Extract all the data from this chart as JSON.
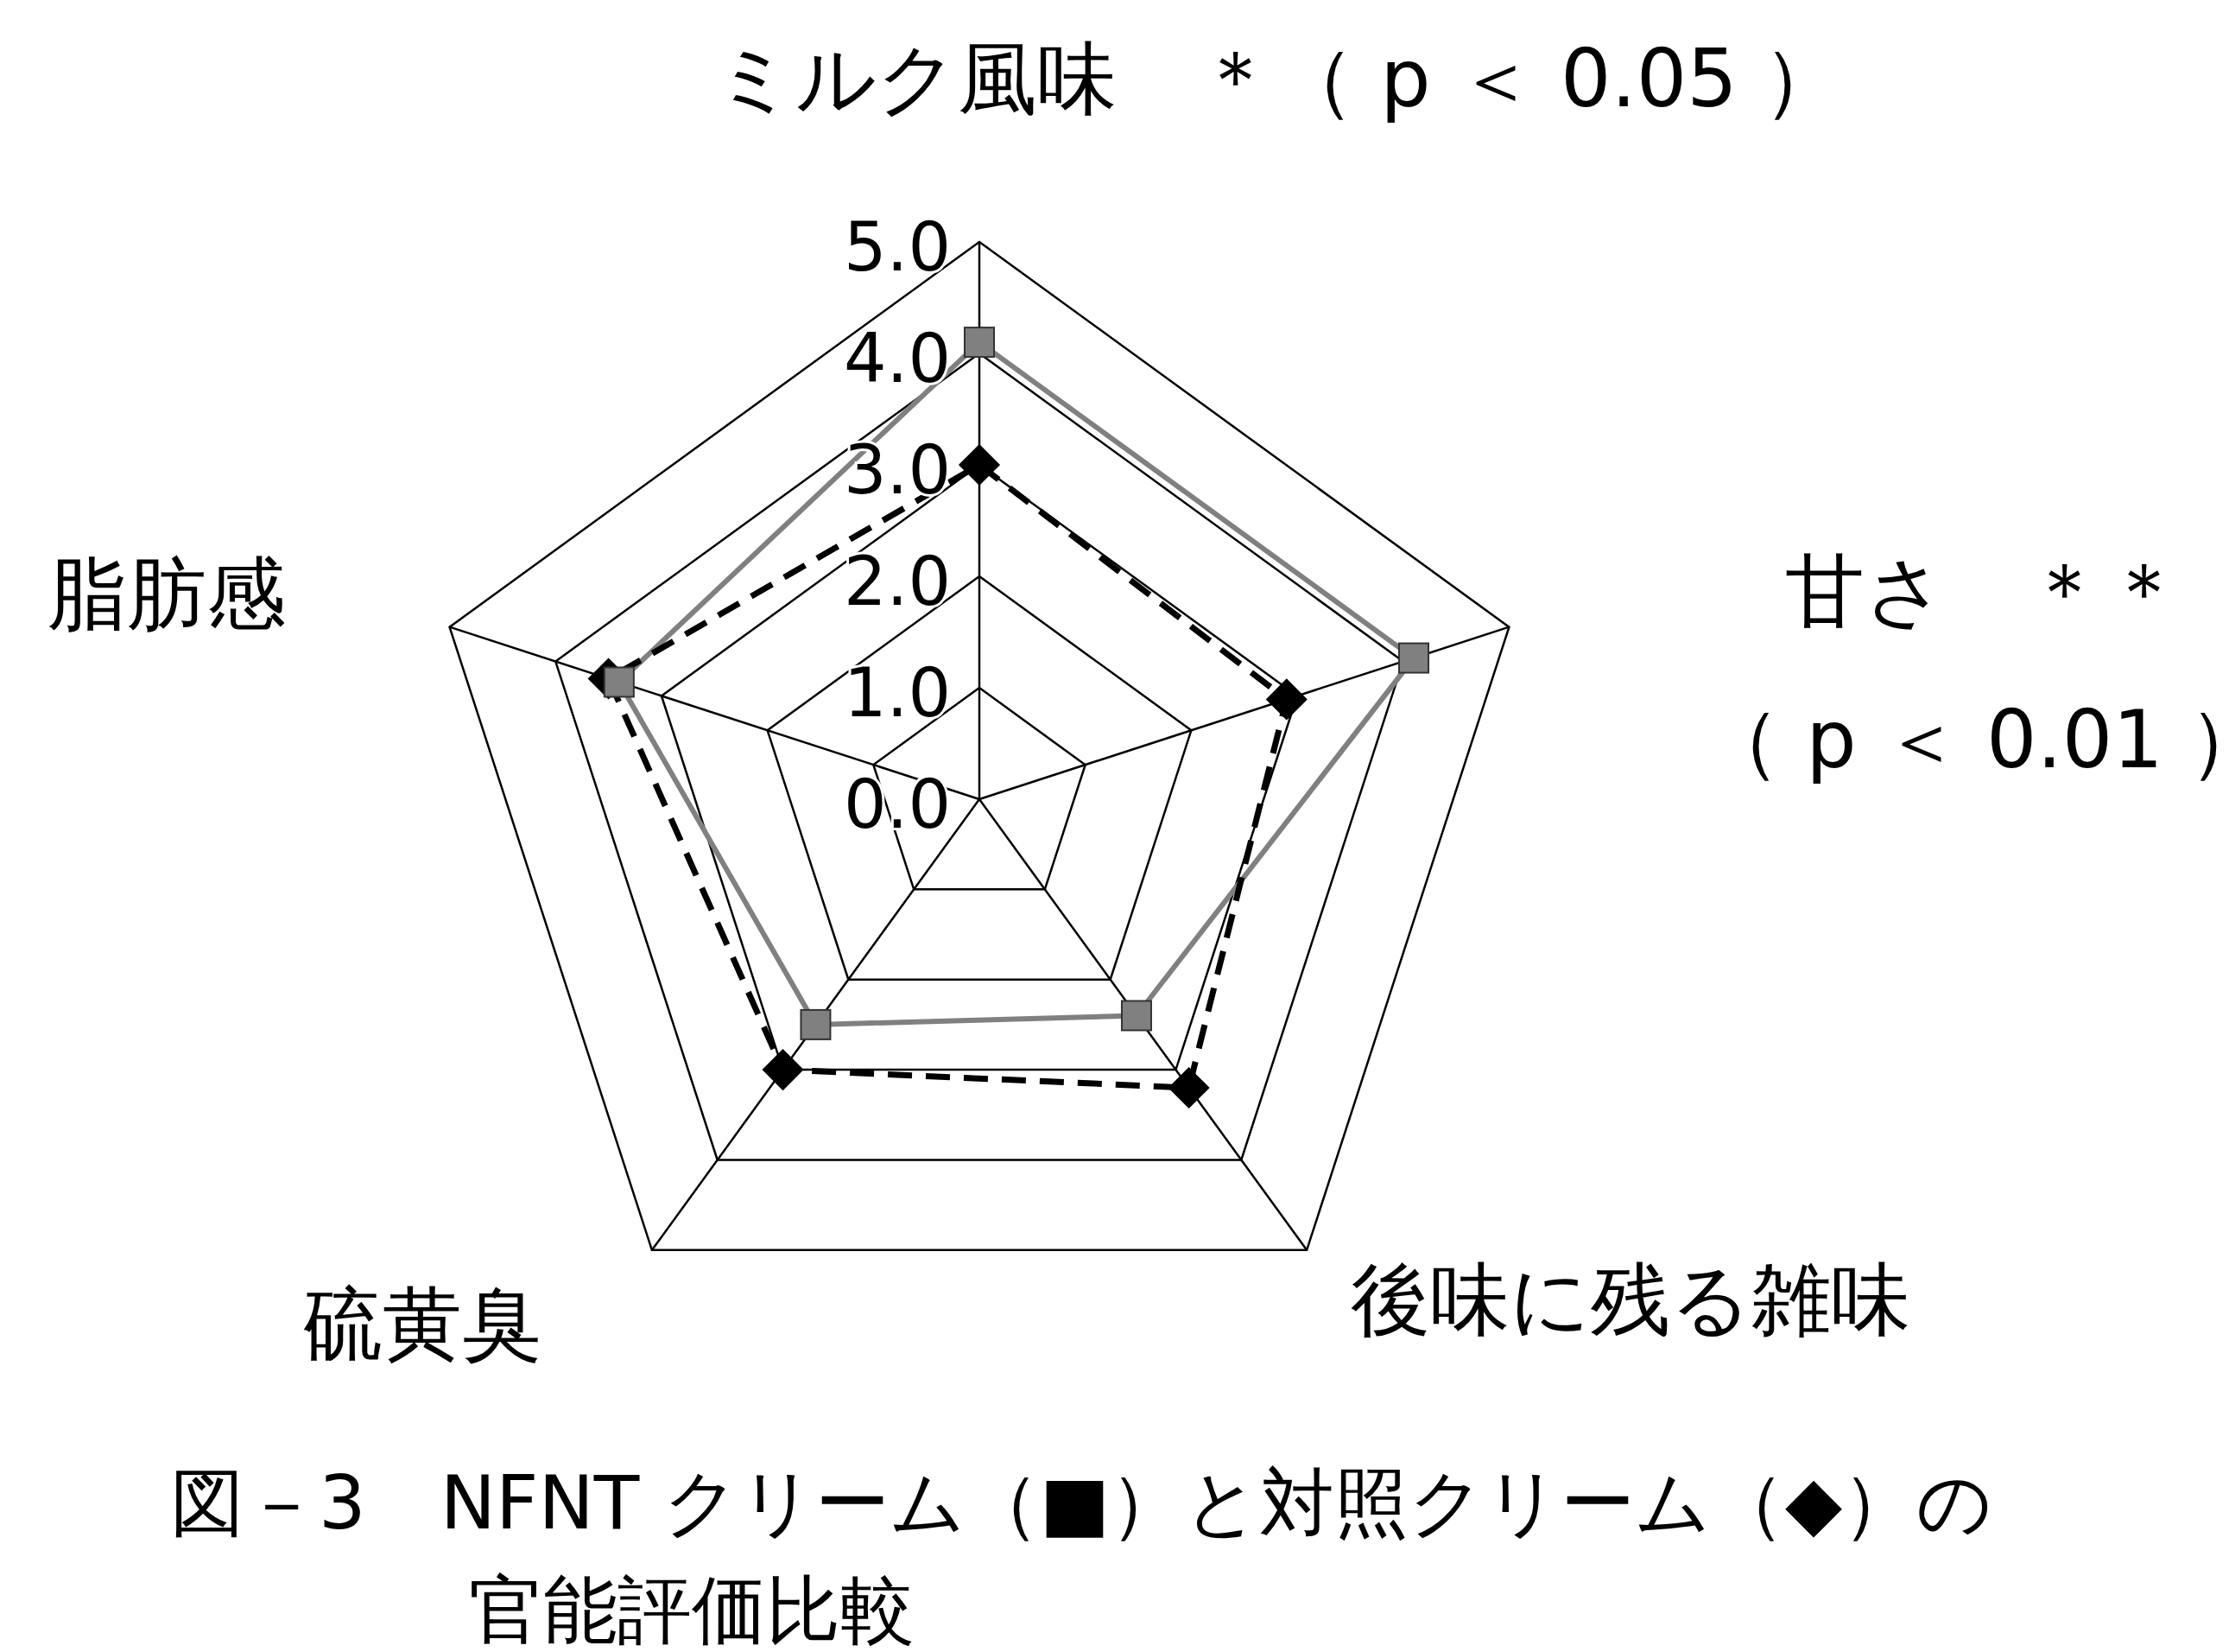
{
  "chart_data": {
    "type": "radar",
    "title": "図－3　NFNT クリーム（■）と対照クリーム（◆）の官能評価比較",
    "categories": [
      "ミルク風味　＊（ p ＜ 0.05 ）",
      "甘さ　＊＊（ p ＜ 0.01 ）",
      "後味に残る雑味",
      "硫黄臭",
      "脂肪感"
    ],
    "ylim": [
      0,
      5
    ],
    "yticks": [
      {
        "value": 0,
        "label": "0.0"
      },
      {
        "value": 1,
        "label": "1.0"
      },
      {
        "value": 2,
        "label": "2.0"
      },
      {
        "value": 3,
        "label": "3.0"
      },
      {
        "value": 4,
        "label": "4.0"
      },
      {
        "value": 5,
        "label": "5.0"
      }
    ],
    "grid": true,
    "series": [
      {
        "color": "#808080",
        "marker": "square",
        "line_style": "solid",
        "values": [
          4.1,
          4.1,
          2.4,
          2.5,
          3.4
        ]
      },
      {
        "color": "#000000",
        "marker": "diamond",
        "line_style": "dashed",
        "values": [
          3.0,
          2.9,
          3.2,
          3.0,
          3.5
        ]
      }
    ]
  }
}
